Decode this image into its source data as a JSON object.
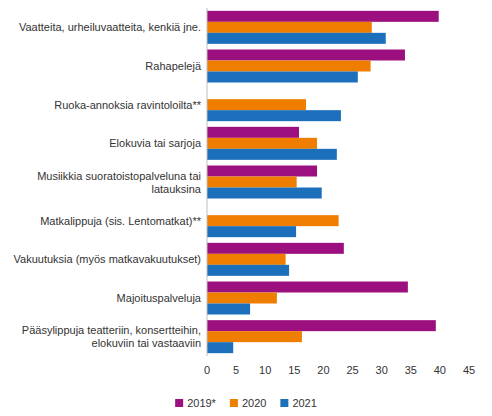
{
  "chart_data": {
    "type": "bar",
    "orientation": "horizontal",
    "categories": [
      "Vaatteita, urheiluvaatteita, kenkiä jne.",
      "Rahapelejä",
      "Ruoka-annoksia ravintoloilta**",
      "Elokuvia tai sarjoja",
      "Musiikkia suoratoistopalveluna tai latauksina",
      "Matkalippuja (sis. Lentomatkat)**",
      "Vakuutuksia (myös matkavakuutukset)",
      "Majoituspalveluja",
      "Pääsylippuja teatteriin, konsertteihin, elokuviin tai vastaaviin"
    ],
    "series": [
      {
        "name": "2019*",
        "color": "#9c0f7e",
        "values": [
          39.8,
          34,
          null,
          15.8,
          18.9,
          null,
          23.5,
          34.5,
          39.3
        ]
      },
      {
        "name": "2020",
        "color": "#ef7d00",
        "values": [
          28.3,
          28.1,
          17,
          18.9,
          15.4,
          22.6,
          13.5,
          12,
          16.3
        ]
      },
      {
        "name": "2021",
        "color": "#1b6fbb",
        "values": [
          30.7,
          25.9,
          23,
          22.3,
          19.7,
          15.3,
          14.1,
          7.4,
          4.5
        ]
      }
    ],
    "xlim": [
      0,
      45
    ],
    "xticks": [
      0,
      5,
      10,
      15,
      20,
      25,
      30,
      35,
      40,
      45
    ],
    "grid": false,
    "legend": "bottom"
  }
}
